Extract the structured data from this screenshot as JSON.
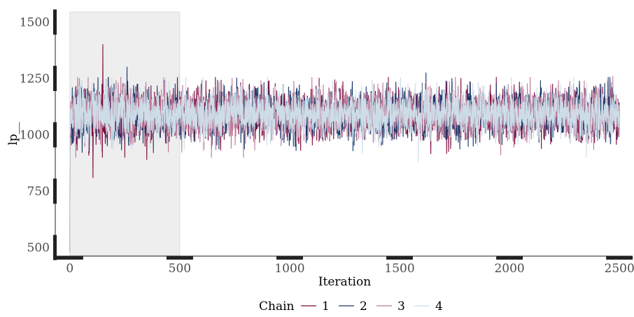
{
  "chart_data": {
    "type": "line",
    "title": "",
    "xlabel": "Iteration",
    "ylabel": "lp__",
    "xlim": [
      -60,
      2560
    ],
    "ylim": [
      465,
      1545
    ],
    "x_ticks": [
      0,
      500,
      1000,
      1500,
      2000,
      2500
    ],
    "x_tick_labels": [
      "0",
      "500",
      "1000",
      "1500",
      "2000",
      "2500"
    ],
    "y_ticks": [
      500,
      750,
      1000,
      1250,
      1500
    ],
    "y_tick_labels": [
      "500",
      "750",
      "1000",
      "1250",
      "1500"
    ],
    "warmup_region": {
      "x_start": 0,
      "x_end": 500,
      "color": "#eeeeee"
    },
    "iterations": 2500,
    "stationary_mean": 1090,
    "stationary_spread": 55,
    "legend": {
      "title": "Chain",
      "position": "bottom"
    },
    "series": [
      {
        "name": "1",
        "color": "#7b0a3d",
        "start_value": 480,
        "notable_points": [
          [
            150,
            1400
          ],
          [
            105,
            810
          ],
          [
            350,
            890
          ]
        ]
      },
      {
        "name": "2",
        "color": "#16386b",
        "start_value": 480,
        "notable_points": [
          [
            260,
            1300
          ],
          [
            1620,
            1275
          ]
        ]
      },
      {
        "name": "3",
        "color": "#c07a99",
        "start_value": 480,
        "notable_points": [
          [
            2470,
            1260
          ],
          [
            1960,
            910
          ]
        ]
      },
      {
        "name": "4",
        "color": "#cddde8",
        "start_value": 480,
        "notable_points": [
          [
            495,
            1270
          ],
          [
            1585,
            880
          ]
        ]
      }
    ]
  }
}
